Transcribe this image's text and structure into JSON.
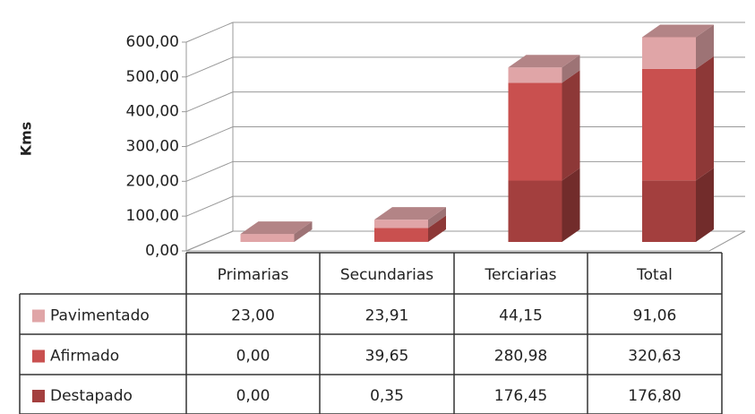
{
  "chart_data": {
    "type": "bar3d_stacked",
    "y_label": "Kms",
    "categories": [
      "Primarias",
      "Secundarias",
      "Terciarias",
      "Total"
    ],
    "series": [
      {
        "name": "Pavimentado",
        "color": "#e0a5a7",
        "values": [
          23.0,
          23.91,
          44.15,
          91.06
        ],
        "value_labels": [
          "23,00",
          "23,91",
          "44,15",
          "91,06"
        ]
      },
      {
        "name": "Afirmado",
        "color": "#c9504f",
        "values": [
          0.0,
          39.65,
          280.98,
          320.63
        ],
        "value_labels": [
          "0,00",
          "39,65",
          "280,98",
          "320,63"
        ]
      },
      {
        "name": "Destapado",
        "color": "#a33f3e",
        "values": [
          0.0,
          0.35,
          176.45,
          176.8
        ],
        "value_labels": [
          "0,00",
          "0,35",
          "176,45",
          "176,80"
        ]
      }
    ],
    "ylim": [
      0,
      600
    ],
    "yticks": [
      {
        "value": 0,
        "label": "0,00"
      },
      {
        "value": 100,
        "label": "100,00"
      },
      {
        "value": 200,
        "label": "200,00"
      },
      {
        "value": 300,
        "label": "300,00"
      },
      {
        "value": 400,
        "label": "400,00"
      },
      {
        "value": 500,
        "label": "500,00"
      },
      {
        "value": 600,
        "label": "600,00"
      }
    ],
    "grid": true
  }
}
